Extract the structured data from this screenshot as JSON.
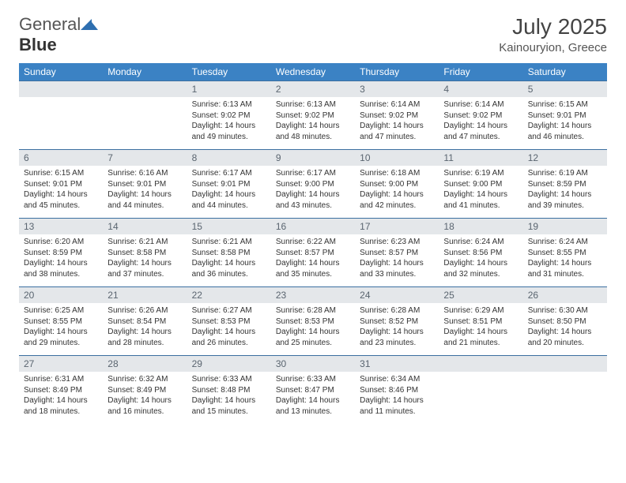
{
  "brand": {
    "part1": "General",
    "part2": "Blue"
  },
  "title": "July 2025",
  "location": "Kainouryion, Greece",
  "header_bg": "#3b82c4",
  "week_border": "#3b6fa0",
  "daynum_bg": "#e4e7ea",
  "weekdays": [
    "Sunday",
    "Monday",
    "Tuesday",
    "Wednesday",
    "Thursday",
    "Friday",
    "Saturday"
  ],
  "weeks": [
    [
      null,
      null,
      {
        "n": "1",
        "sr": "Sunrise: 6:13 AM",
        "ss": "Sunset: 9:02 PM",
        "d1": "Daylight: 14 hours",
        "d2": "and 49 minutes."
      },
      {
        "n": "2",
        "sr": "Sunrise: 6:13 AM",
        "ss": "Sunset: 9:02 PM",
        "d1": "Daylight: 14 hours",
        "d2": "and 48 minutes."
      },
      {
        "n": "3",
        "sr": "Sunrise: 6:14 AM",
        "ss": "Sunset: 9:02 PM",
        "d1": "Daylight: 14 hours",
        "d2": "and 47 minutes."
      },
      {
        "n": "4",
        "sr": "Sunrise: 6:14 AM",
        "ss": "Sunset: 9:02 PM",
        "d1": "Daylight: 14 hours",
        "d2": "and 47 minutes."
      },
      {
        "n": "5",
        "sr": "Sunrise: 6:15 AM",
        "ss": "Sunset: 9:01 PM",
        "d1": "Daylight: 14 hours",
        "d2": "and 46 minutes."
      }
    ],
    [
      {
        "n": "6",
        "sr": "Sunrise: 6:15 AM",
        "ss": "Sunset: 9:01 PM",
        "d1": "Daylight: 14 hours",
        "d2": "and 45 minutes."
      },
      {
        "n": "7",
        "sr": "Sunrise: 6:16 AM",
        "ss": "Sunset: 9:01 PM",
        "d1": "Daylight: 14 hours",
        "d2": "and 44 minutes."
      },
      {
        "n": "8",
        "sr": "Sunrise: 6:17 AM",
        "ss": "Sunset: 9:01 PM",
        "d1": "Daylight: 14 hours",
        "d2": "and 44 minutes."
      },
      {
        "n": "9",
        "sr": "Sunrise: 6:17 AM",
        "ss": "Sunset: 9:00 PM",
        "d1": "Daylight: 14 hours",
        "d2": "and 43 minutes."
      },
      {
        "n": "10",
        "sr": "Sunrise: 6:18 AM",
        "ss": "Sunset: 9:00 PM",
        "d1": "Daylight: 14 hours",
        "d2": "and 42 minutes."
      },
      {
        "n": "11",
        "sr": "Sunrise: 6:19 AM",
        "ss": "Sunset: 9:00 PM",
        "d1": "Daylight: 14 hours",
        "d2": "and 41 minutes."
      },
      {
        "n": "12",
        "sr": "Sunrise: 6:19 AM",
        "ss": "Sunset: 8:59 PM",
        "d1": "Daylight: 14 hours",
        "d2": "and 39 minutes."
      }
    ],
    [
      {
        "n": "13",
        "sr": "Sunrise: 6:20 AM",
        "ss": "Sunset: 8:59 PM",
        "d1": "Daylight: 14 hours",
        "d2": "and 38 minutes."
      },
      {
        "n": "14",
        "sr": "Sunrise: 6:21 AM",
        "ss": "Sunset: 8:58 PM",
        "d1": "Daylight: 14 hours",
        "d2": "and 37 minutes."
      },
      {
        "n": "15",
        "sr": "Sunrise: 6:21 AM",
        "ss": "Sunset: 8:58 PM",
        "d1": "Daylight: 14 hours",
        "d2": "and 36 minutes."
      },
      {
        "n": "16",
        "sr": "Sunrise: 6:22 AM",
        "ss": "Sunset: 8:57 PM",
        "d1": "Daylight: 14 hours",
        "d2": "and 35 minutes."
      },
      {
        "n": "17",
        "sr": "Sunrise: 6:23 AM",
        "ss": "Sunset: 8:57 PM",
        "d1": "Daylight: 14 hours",
        "d2": "and 33 minutes."
      },
      {
        "n": "18",
        "sr": "Sunrise: 6:24 AM",
        "ss": "Sunset: 8:56 PM",
        "d1": "Daylight: 14 hours",
        "d2": "and 32 minutes."
      },
      {
        "n": "19",
        "sr": "Sunrise: 6:24 AM",
        "ss": "Sunset: 8:55 PM",
        "d1": "Daylight: 14 hours",
        "d2": "and 31 minutes."
      }
    ],
    [
      {
        "n": "20",
        "sr": "Sunrise: 6:25 AM",
        "ss": "Sunset: 8:55 PM",
        "d1": "Daylight: 14 hours",
        "d2": "and 29 minutes."
      },
      {
        "n": "21",
        "sr": "Sunrise: 6:26 AM",
        "ss": "Sunset: 8:54 PM",
        "d1": "Daylight: 14 hours",
        "d2": "and 28 minutes."
      },
      {
        "n": "22",
        "sr": "Sunrise: 6:27 AM",
        "ss": "Sunset: 8:53 PM",
        "d1": "Daylight: 14 hours",
        "d2": "and 26 minutes."
      },
      {
        "n": "23",
        "sr": "Sunrise: 6:28 AM",
        "ss": "Sunset: 8:53 PM",
        "d1": "Daylight: 14 hours",
        "d2": "and 25 minutes."
      },
      {
        "n": "24",
        "sr": "Sunrise: 6:28 AM",
        "ss": "Sunset: 8:52 PM",
        "d1": "Daylight: 14 hours",
        "d2": "and 23 minutes."
      },
      {
        "n": "25",
        "sr": "Sunrise: 6:29 AM",
        "ss": "Sunset: 8:51 PM",
        "d1": "Daylight: 14 hours",
        "d2": "and 21 minutes."
      },
      {
        "n": "26",
        "sr": "Sunrise: 6:30 AM",
        "ss": "Sunset: 8:50 PM",
        "d1": "Daylight: 14 hours",
        "d2": "and 20 minutes."
      }
    ],
    [
      {
        "n": "27",
        "sr": "Sunrise: 6:31 AM",
        "ss": "Sunset: 8:49 PM",
        "d1": "Daylight: 14 hours",
        "d2": "and 18 minutes."
      },
      {
        "n": "28",
        "sr": "Sunrise: 6:32 AM",
        "ss": "Sunset: 8:49 PM",
        "d1": "Daylight: 14 hours",
        "d2": "and 16 minutes."
      },
      {
        "n": "29",
        "sr": "Sunrise: 6:33 AM",
        "ss": "Sunset: 8:48 PM",
        "d1": "Daylight: 14 hours",
        "d2": "and 15 minutes."
      },
      {
        "n": "30",
        "sr": "Sunrise: 6:33 AM",
        "ss": "Sunset: 8:47 PM",
        "d1": "Daylight: 14 hours",
        "d2": "and 13 minutes."
      },
      {
        "n": "31",
        "sr": "Sunrise: 6:34 AM",
        "ss": "Sunset: 8:46 PM",
        "d1": "Daylight: 14 hours",
        "d2": "and 11 minutes."
      },
      null,
      null
    ]
  ]
}
